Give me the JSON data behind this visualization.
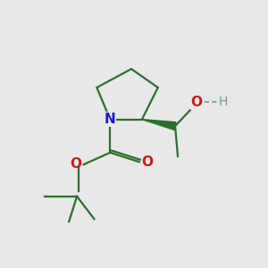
{
  "background_color": "#e8e8e8",
  "bond_color": "#2d6e2d",
  "n_color": "#1a1acc",
  "o_color": "#cc1a1a",
  "h_color": "#7a9a7a",
  "line_width": 1.6,
  "figsize": [
    3.0,
    3.0
  ],
  "dpi": 100,
  "xlim": [
    0,
    10
  ],
  "ylim": [
    0,
    10
  ]
}
